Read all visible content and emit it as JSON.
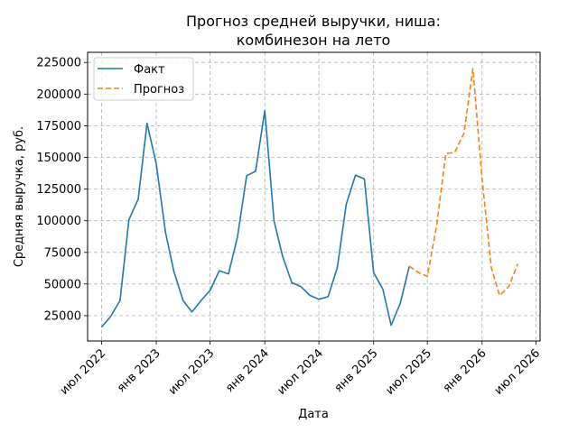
{
  "chart_data": {
    "type": "line",
    "title_line1": "Прогноз средней выручки, ниша:",
    "title_line2": "комбинезон на лето",
    "xlabel": "Дата",
    "ylabel": "Средняя выручка, руб.",
    "ylim": [
      5000,
      233000
    ],
    "yticks": [
      25000,
      50000,
      75000,
      100000,
      125000,
      150000,
      175000,
      200000,
      225000
    ],
    "xticks": [
      {
        "date": "2022-07-01",
        "label": "июл 2022"
      },
      {
        "date": "2023-01-01",
        "label": "янв 2023"
      },
      {
        "date": "2023-07-01",
        "label": "июл 2023"
      },
      {
        "date": "2024-01-01",
        "label": "янв 2024"
      },
      {
        "date": "2024-07-01",
        "label": "июл 2024"
      },
      {
        "date": "2025-01-01",
        "label": "янв 2025"
      },
      {
        "date": "2025-07-01",
        "label": "июл 2025"
      },
      {
        "date": "2026-01-01",
        "label": "янв 2026"
      },
      {
        "date": "2026-07-01",
        "label": "июл 2026"
      }
    ],
    "xlim": [
      "2022-05-15",
      "2026-07-15"
    ],
    "grid": true,
    "legend": "top-left",
    "series": [
      {
        "name": "Факт",
        "color": "#1f77b4",
        "style": "solid",
        "points": [
          [
            "2022-07-01",
            16000
          ],
          [
            "2022-08-01",
            24500
          ],
          [
            "2022-09-01",
            37000
          ],
          [
            "2022-10-01",
            101000
          ],
          [
            "2022-11-01",
            117000
          ],
          [
            "2022-12-01",
            177000
          ],
          [
            "2023-01-01",
            145000
          ],
          [
            "2023-02-01",
            91000
          ],
          [
            "2023-03-01",
            60000
          ],
          [
            "2023-04-01",
            37000
          ],
          [
            "2023-05-01",
            28000
          ],
          [
            "2023-06-01",
            37000
          ],
          [
            "2023-07-01",
            45000
          ],
          [
            "2023-08-01",
            60500
          ],
          [
            "2023-09-01",
            58000
          ],
          [
            "2023-10-01",
            87000
          ],
          [
            "2023-11-01",
            135500
          ],
          [
            "2023-12-01",
            139000
          ],
          [
            "2024-01-01",
            187000
          ],
          [
            "2024-02-01",
            100000
          ],
          [
            "2024-03-01",
            72000
          ],
          [
            "2024-04-01",
            51000
          ],
          [
            "2024-05-01",
            48000
          ],
          [
            "2024-06-01",
            41000
          ],
          [
            "2024-07-01",
            38000
          ],
          [
            "2024-08-01",
            40000
          ],
          [
            "2024-09-01",
            63000
          ],
          [
            "2024-10-01",
            113000
          ],
          [
            "2024-11-01",
            136000
          ],
          [
            "2024-12-01",
            133000
          ],
          [
            "2025-01-01",
            59000
          ],
          [
            "2025-02-01",
            46000
          ],
          [
            "2025-03-01",
            17500
          ],
          [
            "2025-04-01",
            35000
          ],
          [
            "2025-05-01",
            64000
          ]
        ]
      },
      {
        "name": "Прогноз",
        "color": "#ff7f0e",
        "style": "dashed",
        "points": [
          [
            "2025-05-01",
            64000
          ],
          [
            "2025-06-01",
            59000
          ],
          [
            "2025-07-01",
            56000
          ],
          [
            "2025-08-01",
            96000
          ],
          [
            "2025-09-01",
            153000
          ],
          [
            "2025-10-01",
            154000
          ],
          [
            "2025-11-01",
            169000
          ],
          [
            "2025-12-01",
            220000
          ],
          [
            "2026-01-01",
            133000
          ],
          [
            "2026-02-01",
            63000
          ],
          [
            "2026-03-01",
            41000
          ],
          [
            "2026-04-01",
            48000
          ],
          [
            "2026-05-01",
            66000
          ]
        ]
      }
    ]
  }
}
